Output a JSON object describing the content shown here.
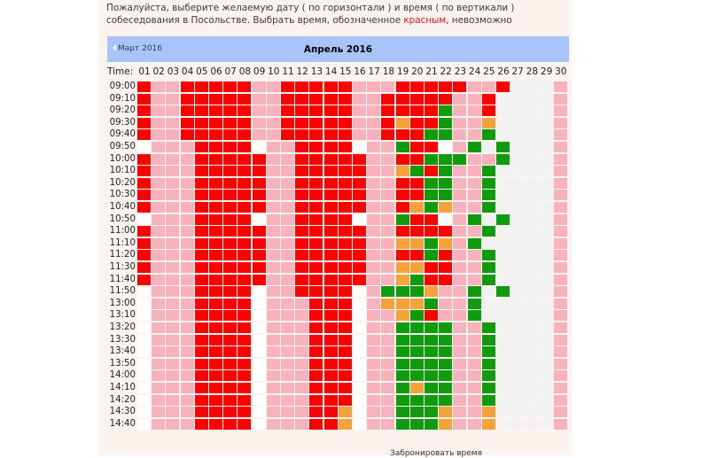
{
  "instructions": {
    "before_red": "Пожалуйста, выберите желаемую дату ( по горизонтали ) и время ( по вертикали ) собеседования в Посольстве. Выбрать время, обозначенное ",
    "red_word": "красным",
    "after_red": ", невозможно"
  },
  "calendar": {
    "prev_label": "Март 2016",
    "month_title": "Апрель 2016",
    "time_header": "Time:",
    "days": [
      "01",
      "02",
      "03",
      "04",
      "05",
      "06",
      "07",
      "08",
      "09",
      "10",
      "11",
      "12",
      "13",
      "14",
      "15",
      "16",
      "17",
      "18",
      "19",
      "20",
      "21",
      "22",
      "23",
      "24",
      "25",
      "26",
      "27",
      "28",
      "29",
      "30"
    ],
    "times": [
      "09:00",
      "09:10",
      "09:20",
      "09:30",
      "09:40",
      "09:50",
      "10:00",
      "10:10",
      "10:20",
      "10:30",
      "10:40",
      "10:50",
      "11:00",
      "11:10",
      "11:20",
      "11:30",
      "11:40",
      "11:50",
      "13:00",
      "13:10",
      "13:20",
      "13:30",
      "13:40",
      "13:50",
      "14:00",
      "14:10",
      "14:20",
      "14:30",
      "14:40"
    ],
    "rows": [
      "rpprrrrrpprrrrrppprrrrrppr",
      "rpprrrrrpprrrrrpprrrrrpprw",
      "rpprrrrrpprrrrrpprrrrgpprw",
      "rpprrrrrpprrrrrpprorrgppow",
      "rpprrrrrpprrrrrpprrrggppgw",
      "eppprrrrepprrrreppgrrepgwg",
      "rppprrrrrpprrrrrpprrgggppgw",
      "rppprrrrrpprrrrrppogrgppgw",
      "rppprrrrrpprrrrrpprrggppgw",
      "rppprrrrrpprrrrrpprrggppgw",
      "rppprrrrrpprrrrrpprogoppgw",
      "eppprrrrepprrrreppgrrepgwg",
      "rppprrrrrpprrrrrpprrrrppgw",
      "rppprrrrrpprrrrrppoogopgw",
      "rppprrrrrpprrrrrpprrgrppgw",
      "rppprrrrrpprrrrrppoorrppgw",
      "rppprrrrrpprrrrrppogrrppgw",
      "eppprrrrepprrrrepgggoppgwg",
      "eppprrrreppprrrepooogppgw",
      "eppprrrreppprrreppogrppgw",
      "eppprrrreppprrreppggggppgw",
      "eppprrrreppprrreppggggppgw",
      "eppprrrreppprrreppggggppgw",
      "eppprrrreppprrreppggggppgw",
      "eppprrrreppprrreppggggppgw",
      "eppprrrreppprrreppgoggppgw",
      "eppprrrreppprrreppggggppgw",
      "eppprrrreppprroeppgggoppow",
      "eppprrrreppprroeppgggoppow"
    ]
  },
  "footer": {
    "partial_text": "Забронировать время"
  }
}
